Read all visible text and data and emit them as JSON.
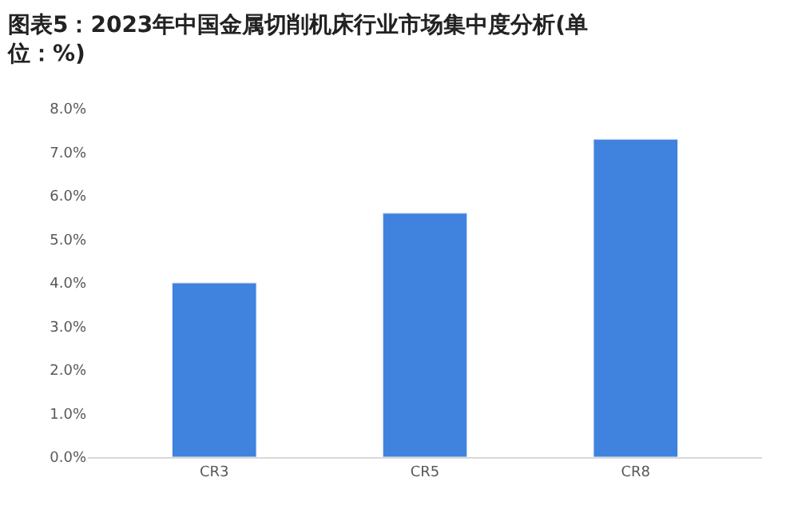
{
  "chart_data": {
    "type": "bar",
    "title": "图表5：2023年中国金属切削机床行业市场集中度分析(单位：%)",
    "categories": [
      "CR3",
      "CR5",
      "CR8"
    ],
    "values": [
      4.0,
      5.6,
      7.3
    ],
    "color": "#3f83de",
    "ylim": [
      0,
      8
    ],
    "yticks": [
      {
        "value": 0,
        "label": "0.0%"
      },
      {
        "value": 1,
        "label": "1.0%"
      },
      {
        "value": 2,
        "label": "2.0%"
      },
      {
        "value": 3,
        "label": "3.0%"
      },
      {
        "value": 4,
        "label": "4.0%"
      },
      {
        "value": 5,
        "label": "5.0%"
      },
      {
        "value": 6,
        "label": "6.0%"
      },
      {
        "value": 7,
        "label": "7.0%"
      },
      {
        "value": 8,
        "label": "8.0%"
      }
    ],
    "grid": false
  }
}
